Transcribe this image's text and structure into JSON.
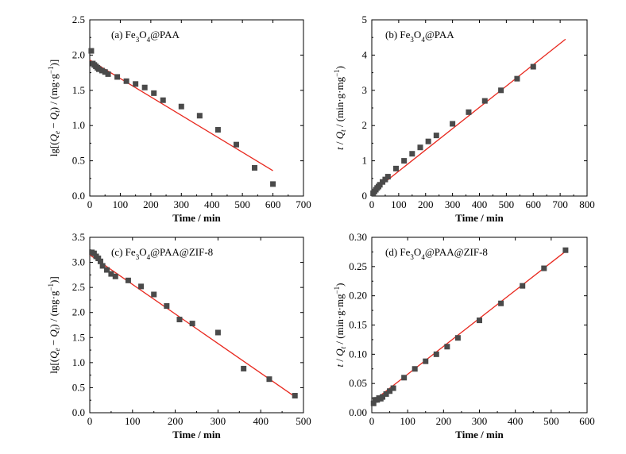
{
  "chart_data": [
    {
      "type": "scatter",
      "panel": "a",
      "title_parts": [
        "(a) Fe",
        "3",
        "O",
        "4",
        "@PAA"
      ],
      "xlabel": "Time / min",
      "ylabel_parts": [
        "lg[(",
        "Q",
        "e",
        " − ",
        "Q",
        "t",
        ") / (mg·g",
        "−1",
        ")]"
      ],
      "xlim": [
        0,
        700
      ],
      "ylim": [
        0,
        2.5
      ],
      "xticks": [
        0,
        100,
        200,
        300,
        400,
        500,
        600,
        700
      ],
      "yticks": [
        0.0,
        0.5,
        1.0,
        1.5,
        2.0,
        2.5
      ],
      "xtick_labels": [
        "0",
        "100",
        "200",
        "300",
        "400",
        "500",
        "600",
        "700"
      ],
      "ytick_labels": [
        "0.0",
        "0.5",
        "1.0",
        "1.5",
        "2.0",
        "2.5"
      ],
      "points": [
        [
          5,
          2.06
        ],
        [
          10,
          1.88
        ],
        [
          15,
          1.86
        ],
        [
          20,
          1.84
        ],
        [
          25,
          1.82
        ],
        [
          30,
          1.8
        ],
        [
          40,
          1.78
        ],
        [
          50,
          1.76
        ],
        [
          60,
          1.73
        ],
        [
          90,
          1.69
        ],
        [
          120,
          1.63
        ],
        [
          150,
          1.59
        ],
        [
          180,
          1.54
        ],
        [
          210,
          1.46
        ],
        [
          240,
          1.36
        ],
        [
          300,
          1.27
        ],
        [
          360,
          1.14
        ],
        [
          420,
          0.94
        ],
        [
          480,
          0.73
        ],
        [
          540,
          0.4
        ],
        [
          600,
          0.17
        ]
      ],
      "fit_line": [
        [
          0,
          1.93
        ],
        [
          600,
          0.36
        ]
      ],
      "marker_color": "#4a4a4a",
      "line_color": "#e8281e"
    },
    {
      "type": "scatter",
      "panel": "b",
      "title_parts": [
        "(b) Fe",
        "3",
        "O",
        "4",
        "@PAA"
      ],
      "xlabel": "Time / min",
      "ylabel_parts": [
        "t",
        " / ",
        "Q",
        "t",
        " / (min·g·mg",
        "−1",
        ")"
      ],
      "xlim": [
        0,
        800
      ],
      "ylim": [
        0,
        5
      ],
      "xticks": [
        0,
        100,
        200,
        300,
        400,
        500,
        600,
        700,
        800
      ],
      "yticks": [
        0,
        1,
        2,
        3,
        4,
        5
      ],
      "xtick_labels": [
        "0",
        "100",
        "200",
        "300",
        "400",
        "500",
        "600",
        "700",
        "800"
      ],
      "ytick_labels": [
        "0",
        "1",
        "2",
        "3",
        "4",
        "5"
      ],
      "points": [
        [
          5,
          0.08
        ],
        [
          10,
          0.13
        ],
        [
          15,
          0.18
        ],
        [
          20,
          0.23
        ],
        [
          25,
          0.27
        ],
        [
          30,
          0.32
        ],
        [
          40,
          0.4
        ],
        [
          50,
          0.47
        ],
        [
          60,
          0.55
        ],
        [
          90,
          0.78
        ],
        [
          120,
          1.0
        ],
        [
          150,
          1.2
        ],
        [
          180,
          1.38
        ],
        [
          210,
          1.55
        ],
        [
          240,
          1.72
        ],
        [
          300,
          2.05
        ],
        [
          360,
          2.38
        ],
        [
          420,
          2.7
        ],
        [
          480,
          3.0
        ],
        [
          540,
          3.33
        ],
        [
          600,
          3.67
        ]
      ],
      "fit_line": [
        [
          0,
          0.1
        ],
        [
          720,
          4.45
        ]
      ],
      "marker_color": "#4a4a4a",
      "line_color": "#e8281e"
    },
    {
      "type": "scatter",
      "panel": "c",
      "title_parts": [
        "(c) Fe",
        "3",
        "O",
        "4",
        "@PAA@ZIF-8"
      ],
      "xlabel": "Time / min",
      "ylabel_parts": [
        "lg[(",
        "Q",
        "e",
        " − ",
        "Q",
        "t",
        ") / (mg·g",
        "−1",
        ")]"
      ],
      "xlim": [
        0,
        500
      ],
      "ylim": [
        0,
        3.5
      ],
      "xticks": [
        0,
        100,
        200,
        300,
        400,
        500
      ],
      "yticks": [
        0.0,
        0.5,
        1.0,
        1.5,
        2.0,
        2.5,
        3.0,
        3.5
      ],
      "xtick_labels": [
        "0",
        "100",
        "200",
        "300",
        "400",
        "500"
      ],
      "ytick_labels": [
        "0.0",
        "0.5",
        "1.0",
        "1.5",
        "2.0",
        "2.5",
        "3.0",
        "3.5"
      ],
      "points": [
        [
          5,
          3.2
        ],
        [
          10,
          3.18
        ],
        [
          15,
          3.12
        ],
        [
          20,
          3.08
        ],
        [
          25,
          3.02
        ],
        [
          30,
          2.93
        ],
        [
          40,
          2.85
        ],
        [
          50,
          2.77
        ],
        [
          60,
          2.72
        ],
        [
          90,
          2.64
        ],
        [
          120,
          2.52
        ],
        [
          150,
          2.36
        ],
        [
          180,
          2.13
        ],
        [
          210,
          1.86
        ],
        [
          240,
          1.78
        ],
        [
          300,
          1.6
        ],
        [
          360,
          0.88
        ],
        [
          420,
          0.67
        ],
        [
          480,
          0.34
        ]
      ],
      "fit_line": [
        [
          0,
          3.15
        ],
        [
          480,
          0.32
        ]
      ],
      "marker_color": "#4a4a4a",
      "line_color": "#e8281e"
    },
    {
      "type": "scatter",
      "panel": "d",
      "title_parts": [
        "(d) Fe",
        "3",
        "O",
        "4",
        "@PAA@ZIF-8"
      ],
      "xlabel": "Time / min",
      "ylabel_parts": [
        "t",
        " / ",
        "Q",
        "t",
        " / (min·g·mg",
        "−1",
        ")"
      ],
      "xlim": [
        0,
        600
      ],
      "ylim": [
        0,
        0.3
      ],
      "xticks": [
        0,
        100,
        200,
        300,
        400,
        500,
        600
      ],
      "yticks": [
        0.0,
        0.05,
        0.1,
        0.15,
        0.2,
        0.25,
        0.3
      ],
      "xtick_labels": [
        "0",
        "100",
        "200",
        "300",
        "400",
        "500",
        "600"
      ],
      "ytick_labels": [
        "0.00",
        "0.05",
        "0.10",
        "0.15",
        "0.20",
        "0.25",
        "0.30"
      ],
      "points": [
        [
          5,
          0.016
        ],
        [
          10,
          0.022
        ],
        [
          15,
          0.022
        ],
        [
          20,
          0.025
        ],
        [
          25,
          0.024
        ],
        [
          30,
          0.027
        ],
        [
          40,
          0.032
        ],
        [
          50,
          0.037
        ],
        [
          60,
          0.042
        ],
        [
          90,
          0.06
        ],
        [
          120,
          0.075
        ],
        [
          150,
          0.088
        ],
        [
          180,
          0.1
        ],
        [
          210,
          0.113
        ],
        [
          240,
          0.128
        ],
        [
          300,
          0.158
        ],
        [
          360,
          0.187
        ],
        [
          420,
          0.217
        ],
        [
          480,
          0.247
        ],
        [
          540,
          0.278
        ]
      ],
      "fit_line": [
        [
          0,
          0.018
        ],
        [
          540,
          0.276
        ]
      ],
      "marker_color": "#4a4a4a",
      "line_color": "#e8281e"
    }
  ]
}
